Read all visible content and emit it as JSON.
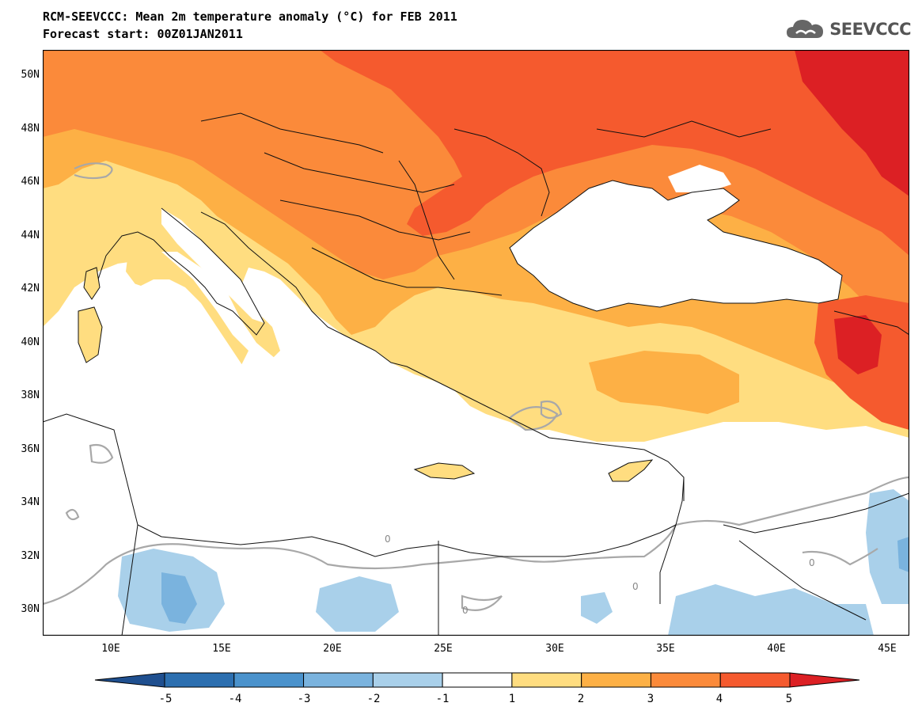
{
  "header": {
    "title_line1": "RCM-SEEVCCC: Mean 2m temperature anomaly (°C) for FEB 2011",
    "title_line2": "Forecast start: 00Z01JAN2011",
    "logo_text": "SEEVCCC"
  },
  "map": {
    "lat_labels": [
      "50N",
      "48N",
      "46N",
      "44N",
      "42N",
      "40N",
      "38N",
      "36N",
      "34N",
      "32N",
      "30N"
    ],
    "lon_labels": [
      "10E",
      "15E",
      "20E",
      "25E",
      "30E",
      "35E",
      "40E",
      "45E"
    ],
    "contour_label": "0",
    "extent": {
      "lon": [
        7,
        46
      ],
      "lat": [
        29,
        51
      ]
    }
  },
  "colorbar": {
    "labels": [
      "-5",
      "-4",
      "-3",
      "-2",
      "-1",
      "1",
      "2",
      "3",
      "4",
      "5"
    ],
    "colors": [
      "#1f4f8f",
      "#2c6fb0",
      "#4a92cc",
      "#7ab3de",
      "#a9d0ea",
      "#ffffff",
      "#ffdd80",
      "#fdb045",
      "#fb8a3a",
      "#f55a2e",
      "#dc2024"
    ]
  }
}
